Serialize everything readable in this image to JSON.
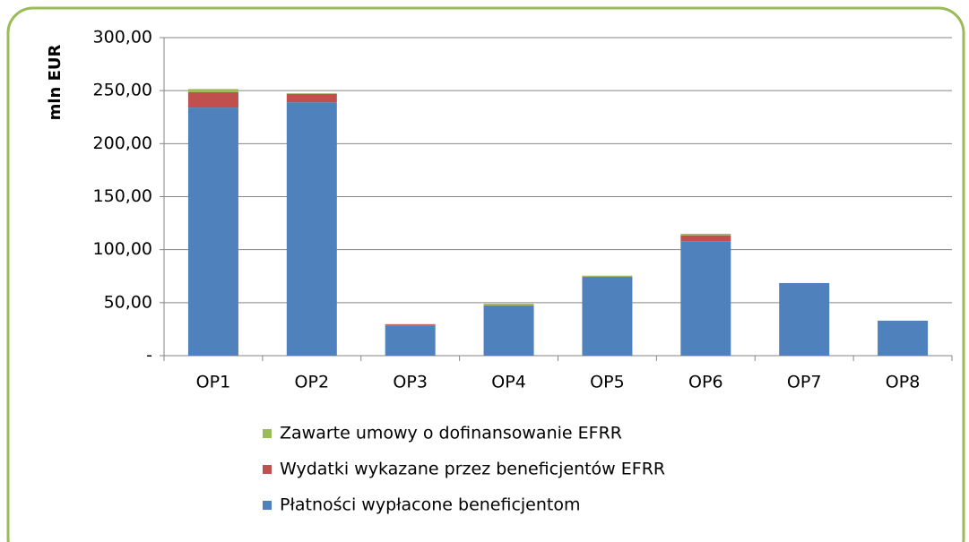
{
  "chart_data": {
    "type": "stacked_bar",
    "y_label": "mln EUR",
    "categories": [
      "OP1",
      "OP2",
      "OP3",
      "OP4",
      "OP5",
      "OP6",
      "OP7",
      "OP8"
    ],
    "series": [
      {
        "name": "Płatności wypłacone beneficjentom",
        "color": "#4f81bd",
        "values": [
          234,
          239,
          28.5,
          47,
          74,
          108,
          68.5,
          33
        ]
      },
      {
        "name": "Wydatki wykazane przez beneficjentów EFRR",
        "color": "#c0504d",
        "values": [
          14.5,
          8,
          1,
          0.5,
          0.5,
          5.5,
          0,
          0
        ]
      },
      {
        "name": "Zawarte umowy o dofinansowanie EFRR",
        "color": "#9bbb59",
        "values": [
          3,
          0.5,
          0.3,
          1.5,
          1,
          1.5,
          0,
          0
        ]
      }
    ],
    "ylim": [
      0,
      300
    ],
    "yticks": [
      {
        "value": 0,
        "label": "-"
      },
      {
        "value": 50,
        "label": "50,00"
      },
      {
        "value": 100,
        "label": "100,00"
      },
      {
        "value": 150,
        "label": "150,00"
      },
      {
        "value": 200,
        "label": "200,00"
      },
      {
        "value": 250,
        "label": "250,00"
      },
      {
        "value": 300,
        "label": "300,00"
      }
    ],
    "grid": true
  }
}
